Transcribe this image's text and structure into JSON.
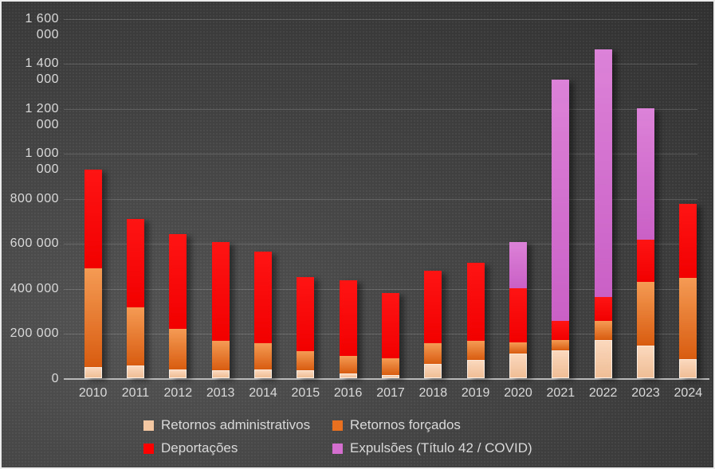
{
  "chart_data": {
    "type": "bar",
    "stacked": true,
    "title": "",
    "xlabel": "",
    "ylabel": "",
    "categories": [
      "2010",
      "2011",
      "2012",
      "2013",
      "2014",
      "2015",
      "2016",
      "2017",
      "2018",
      "2019",
      "2020",
      "2021",
      "2022",
      "2023",
      "2024"
    ],
    "series": [
      {
        "name": "Retornos administrativos",
        "color": "#f4c7a3",
        "color_top": "#fbd8bd",
        "color_bottom": "#efbe96",
        "values": [
          50000,
          55000,
          40000,
          35000,
          40000,
          35000,
          20000,
          15000,
          65000,
          80000,
          110000,
          125000,
          170000,
          145000,
          85000
        ]
      },
      {
        "name": "Retornos forçados",
        "color": "#e8701f",
        "color_top": "#f59b54",
        "color_bottom": "#d85c10",
        "values": [
          440000,
          260000,
          180000,
          130000,
          115000,
          85000,
          80000,
          75000,
          90000,
          85000,
          50000,
          45000,
          85000,
          285000,
          360000
        ]
      },
      {
        "name": "Deportações",
        "color": "#fe0000",
        "color_top": "#ff1414",
        "color_bottom": "#f20000",
        "values": [
          440000,
          395000,
          420000,
          440000,
          410000,
          330000,
          335000,
          290000,
          325000,
          350000,
          240000,
          85000,
          105000,
          185000,
          330000
        ]
      },
      {
        "name": "Expulsões (Título 42 / COVID)",
        "color": "#d46fd0",
        "color_top": "#dc82d8",
        "color_bottom": "#ca60c6",
        "values": [
          0,
          0,
          0,
          0,
          0,
          0,
          0,
          0,
          0,
          0,
          205000,
          1075000,
          1105000,
          585000,
          0
        ]
      }
    ],
    "totals": [
      930000,
      710000,
      640000,
      605000,
      565000,
      450000,
      435000,
      380000,
      480000,
      515000,
      605000,
      1330000,
      1465000,
      1200000,
      775000
    ],
    "ylim": [
      0,
      1600000
    ],
    "ytick_step": 200000,
    "yticks": [
      0,
      200000,
      400000,
      600000,
      800000,
      1000000,
      1200000,
      1400000,
      1600000
    ],
    "ytick_labels": [
      "0",
      "200 000",
      "400 000",
      "600 000",
      "800 000",
      "1 000 000",
      "1 200 000",
      "1 400 000",
      "1 600 000"
    ],
    "grid": true,
    "legend_position": "bottom"
  },
  "colors": {
    "background": "#414141",
    "background_dark": "#2c2c2c",
    "text": "#d9d9d9",
    "gridline": "rgba(255,255,255,0.16)",
    "axis_line": "#b9b9b9",
    "frame_border": "#ececec"
  }
}
